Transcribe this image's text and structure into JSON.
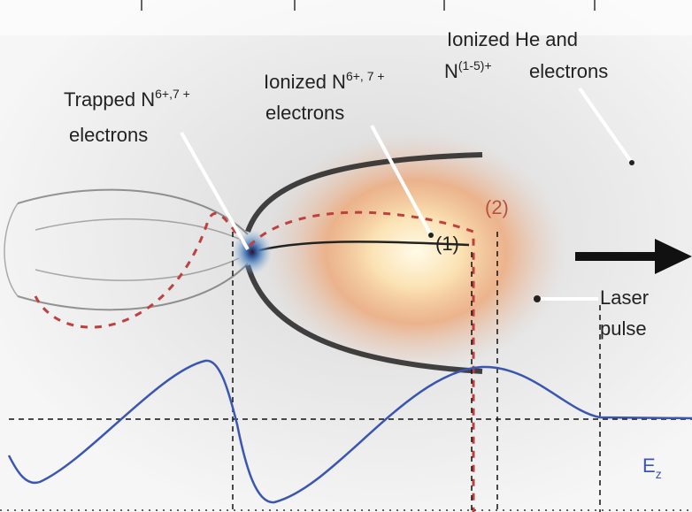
{
  "annotations": [
    {
      "lines": [
        {
          "text": "Trapped N",
          "sup": "6+,7 +"
        },
        {
          "text": "electrons"
        }
      ]
    },
    {
      "lines": [
        {
          "text": "Ionized N",
          "sup": "6+, 7 +"
        },
        {
          "text": "electrons"
        }
      ]
    },
    {
      "lines": [
        {
          "text": "Ionized He and"
        },
        {
          "text": "N",
          "sup": "(1-5)+"
        },
        {
          "text": "electrons"
        }
      ]
    },
    {
      "lines": [
        {
          "text": "Laser"
        },
        {
          "text": "pulse"
        }
      ]
    }
  ],
  "trajectory_labels": [
    "(2)",
    "(1)"
  ],
  "field_label": {
    "text": "E",
    "sub": "z"
  }
}
